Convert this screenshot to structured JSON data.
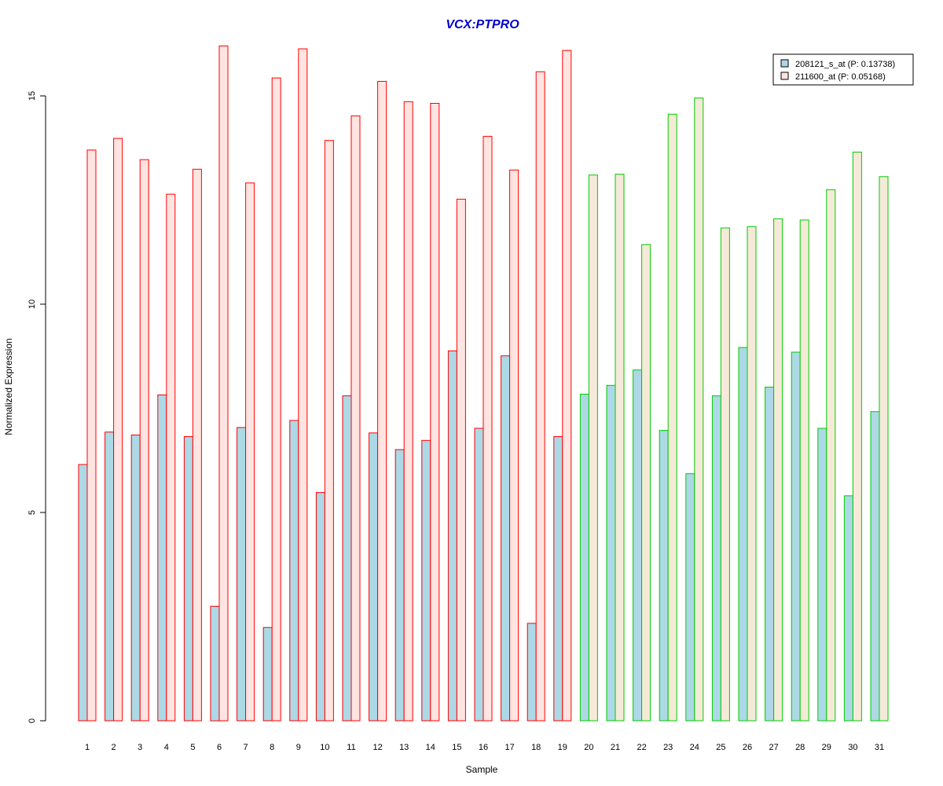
{
  "chart_data": {
    "type": "bar",
    "title": "VCX:PTPRO",
    "xlabel": "Sample",
    "ylabel": "Normalized Expression",
    "ylim": [
      0,
      16.2
    ],
    "yticks": [
      "0",
      "5",
      "10",
      "15"
    ],
    "grid": false,
    "legend_position": "top-right",
    "categories": [
      "1",
      "2",
      "3",
      "4",
      "5",
      "6",
      "7",
      "8",
      "9",
      "10",
      "11",
      "12",
      "13",
      "14",
      "15",
      "16",
      "17",
      "18",
      "19",
      "20",
      "21",
      "22",
      "23",
      "24",
      "25",
      "26",
      "27",
      "28",
      "29",
      "30",
      "31"
    ],
    "group_border_colors": [
      "#ff0000",
      "#ff0000",
      "#ff0000",
      "#ff0000",
      "#ff0000",
      "#ff0000",
      "#ff0000",
      "#ff0000",
      "#ff0000",
      "#ff0000",
      "#ff0000",
      "#ff0000",
      "#ff0000",
      "#ff0000",
      "#ff0000",
      "#ff0000",
      "#ff0000",
      "#ff0000",
      "#ff0000",
      "#00cc00",
      "#00cc00",
      "#00cc00",
      "#00cc00",
      "#00cc00",
      "#00cc00",
      "#00cc00",
      "#00cc00",
      "#00cc00",
      "#00cc00",
      "#00cc00",
      "#00cc00"
    ],
    "series": [
      {
        "name": "208121_s_at (P: 0.13738)",
        "fill": "#add8e6",
        "values": [
          6.15,
          6.93,
          6.86,
          7.82,
          6.82,
          2.75,
          7.04,
          2.24,
          7.21,
          5.48,
          7.8,
          6.91,
          6.51,
          6.73,
          8.88,
          7.02,
          8.76,
          2.34,
          6.82,
          7.84,
          8.05,
          8.42,
          6.97,
          5.93,
          7.8,
          8.96,
          8.01,
          8.85,
          7.02,
          5.4,
          7.42
        ]
      },
      {
        "name": "211600_at (P: 0.05168)",
        "fill_by_group": [
          "#ffe4e1",
          "#f5ead8"
        ],
        "values": [
          13.7,
          13.98,
          13.47,
          12.64,
          13.24,
          16.2,
          12.91,
          15.43,
          16.13,
          13.93,
          14.52,
          15.35,
          14.86,
          14.82,
          12.52,
          14.03,
          13.22,
          15.58,
          16.09,
          13.1,
          13.12,
          11.43,
          14.56,
          14.95,
          11.83,
          11.86,
          12.05,
          12.02,
          12.75,
          13.65,
          13.06
        ]
      }
    ]
  }
}
